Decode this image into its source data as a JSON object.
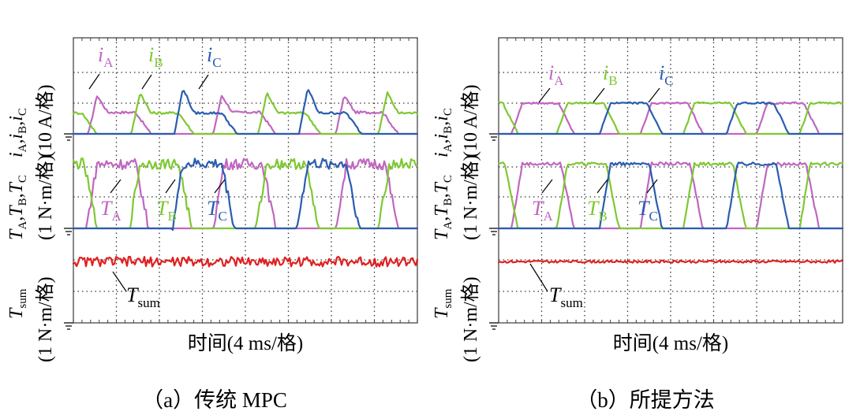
{
  "colors": {
    "A": "#c066c0",
    "B": "#7fc832",
    "C": "#2a5db0",
    "sum": "#e02020"
  },
  "panels": [
    {
      "caption": "（a）传统 MPC",
      "xlabel": "时间(4 ms/格)",
      "ylabels": {
        "current": {
          "main": "i",
          "parts": [
            "A",
            "B",
            "C"
          ],
          "unit": "(10 A/格)"
        },
        "torque": {
          "main": "T",
          "parts": [
            "A",
            "B",
            "C"
          ],
          "unit": "(1 N·m/格)"
        },
        "sum": {
          "main": "T",
          "sub": "sum",
          "unit": "(1 N·m/格)"
        }
      },
      "annotations": {
        "iA": "A",
        "iB": "B",
        "iC": "C",
        "TA": "A",
        "TB": "B",
        "TC": "C",
        "Tsum": "sum"
      }
    },
    {
      "caption": "（b）所提方法",
      "xlabel": "时间(4 ms/格)",
      "ylabels": {
        "current": {
          "main": "i",
          "parts": [
            "A",
            "B",
            "C"
          ],
          "unit": "(10 A/格)"
        },
        "torque": {
          "main": "T",
          "parts": [
            "A",
            "B",
            "C"
          ],
          "unit": "(1 N·m/格)"
        },
        "sum": {
          "main": "T",
          "sub": "sum",
          "unit": "(1 N·m/格)"
        }
      },
      "annotations": {
        "iA": "A",
        "iB": "B",
        "iC": "C",
        "TA": "A",
        "TB": "B",
        "TC": "C",
        "Tsum": "sum"
      }
    }
  ],
  "chart_data": [
    {
      "type": "line",
      "title": "（a）传统 MPC",
      "xlabel": "时间(4 ms/格)",
      "x_divisions": 8,
      "x_unit_per_div": "4 ms",
      "series": [
        {
          "name": "iA",
          "channel": "current",
          "unit_per_div": "10 A",
          "peak_div": 1.25,
          "flat_div": 0.7,
          "ripple_div": 0.04,
          "x_start_div": [
            0.35,
            3.25,
            6.1
          ]
        },
        {
          "name": "iB",
          "channel": "current",
          "unit_per_div": "10 A",
          "peak_div": 1.35,
          "flat_div": 0.68,
          "ripple_div": 0.04,
          "x_start_div": [
            1.35,
            4.3,
            7.1
          ]
        },
        {
          "name": "iC",
          "channel": "current",
          "unit_per_div": "10 A",
          "peak_div": 1.5,
          "flat_div": 0.68,
          "ripple_div": 0.04,
          "x_start_div": [
            2.35,
            5.25
          ]
        },
        {
          "name": "TA",
          "channel": "torque",
          "unit_per_div": "1 N·m",
          "high_div": 2.1,
          "ripple_div": 0.18,
          "x_start_div": [
            0.3,
            3.25,
            6.1
          ]
        },
        {
          "name": "TB",
          "channel": "torque",
          "unit_per_div": "1 N·m",
          "high_div": 2.1,
          "ripple_div": 0.18,
          "x_start_div": [
            1.3,
            4.25,
            7.1
          ]
        },
        {
          "name": "TC",
          "channel": "torque",
          "unit_per_div": "1 N·m",
          "high_div": 2.1,
          "ripple_div": 0.18,
          "x_start_div": [
            2.3,
            5.2
          ]
        },
        {
          "name": "Tsum",
          "channel": "sum",
          "unit_per_div": "1 N·m",
          "mean_div": 2.1,
          "ripple_div": 0.25
        }
      ]
    },
    {
      "type": "line",
      "title": "（b）所提方法",
      "xlabel": "时间(4 ms/格)",
      "x_divisions": 8,
      "x_unit_per_div": "4 ms",
      "series": [
        {
          "name": "iA",
          "channel": "current",
          "unit_per_div": "10 A",
          "flat_div": 1.0,
          "ripple_div": 0.03,
          "x_start_div": [
            0.3,
            3.3,
            6.0
          ]
        },
        {
          "name": "iB",
          "channel": "current",
          "unit_per_div": "10 A",
          "flat_div": 1.0,
          "ripple_div": 0.03,
          "x_start_div": [
            1.35,
            4.3,
            7.0
          ]
        },
        {
          "name": "iC",
          "channel": "current",
          "unit_per_div": "10 A",
          "flat_div": 1.0,
          "ripple_div": 0.03,
          "x_start_div": [
            2.35,
            5.3
          ]
        },
        {
          "name": "TA",
          "channel": "torque",
          "unit_per_div": "1 N·m",
          "high_div": 2.1,
          "ripple_div": 0.05,
          "x_start_div": [
            0.3,
            3.3,
            6.0
          ]
        },
        {
          "name": "TB",
          "channel": "torque",
          "unit_per_div": "1 N·m",
          "high_div": 2.1,
          "ripple_div": 0.05,
          "x_start_div": [
            1.35,
            4.3,
            7.0
          ]
        },
        {
          "name": "TC",
          "channel": "torque",
          "unit_per_div": "1 N·m",
          "high_div": 2.1,
          "ripple_div": 0.05,
          "x_start_div": [
            2.35,
            5.3
          ]
        },
        {
          "name": "Tsum",
          "channel": "sum",
          "unit_per_div": "1 N·m",
          "mean_div": 2.1,
          "ripple_div": 0.06
        }
      ]
    }
  ]
}
